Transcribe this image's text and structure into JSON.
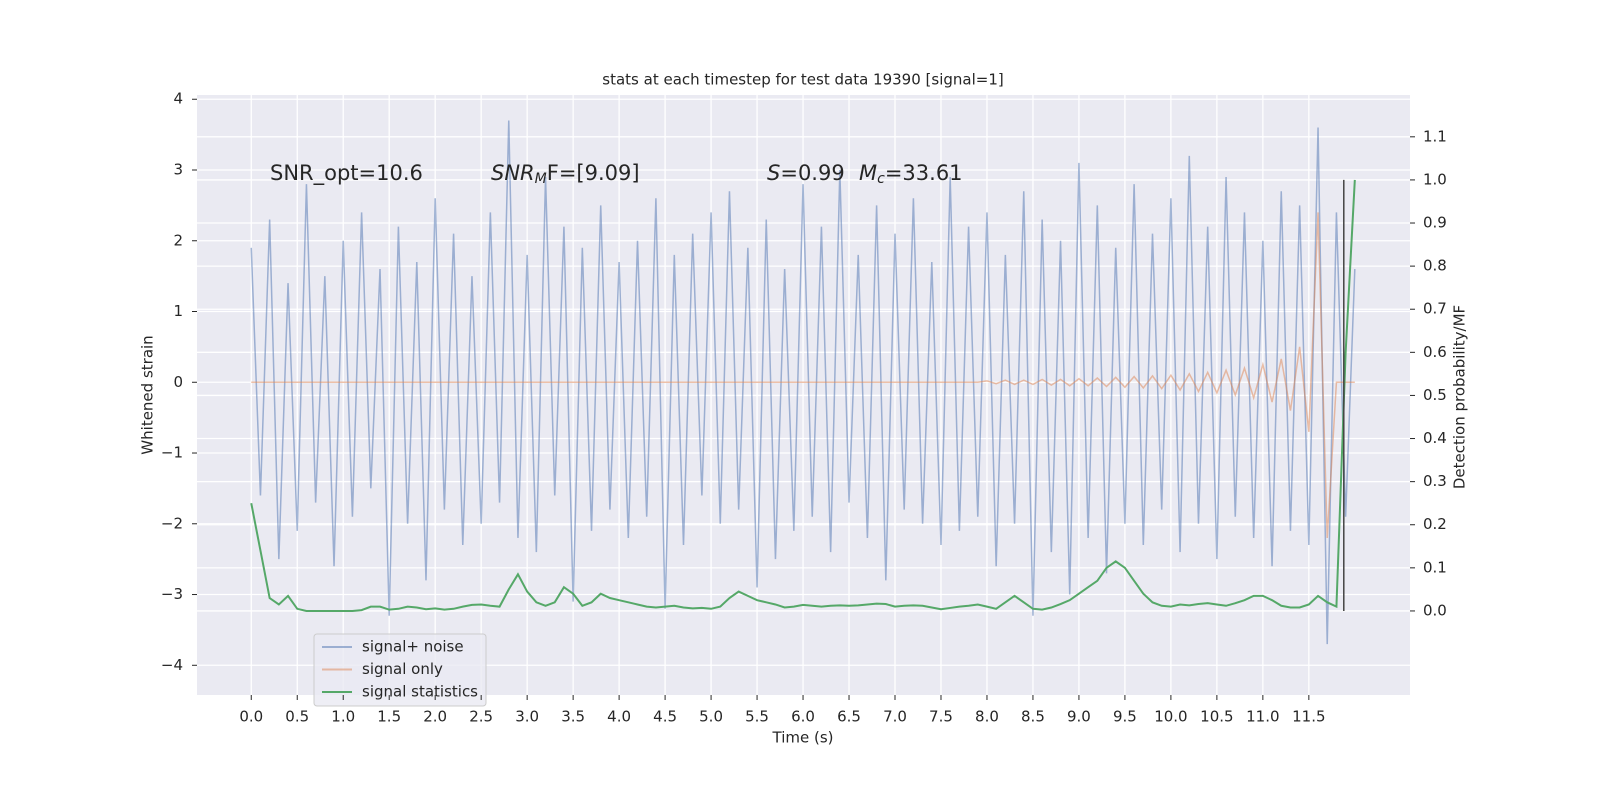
{
  "chart_data": {
    "type": "line",
    "title": "stats at each timestep for test data 19390 [signal=1]",
    "xlabel": "Time (s)",
    "ylabel": "Whitened strain",
    "y2label": "Detection probability/MF",
    "annotations": [
      [
        "SNR_opt=10.6"
      ],
      [
        "SNR",
        "M",
        "F=[9.09]"
      ],
      [
        "S",
        "=0.99"
      ],
      [
        "M",
        "c",
        "=33.61"
      ]
    ],
    "xlim": [
      -0.59,
      12.6
    ],
    "ylim": [
      -4.42,
      4.06
    ],
    "y2lim": [
      -0.195,
      1.197
    ],
    "xticks": [
      {
        "value": 0,
        "label": "0.0"
      },
      0.5,
      {
        "value": 1,
        "label": "1.0"
      },
      1.5,
      {
        "value": 2,
        "label": "2.0"
      },
      2.5,
      {
        "value": 3,
        "label": "3.0"
      },
      3.5,
      {
        "value": 4,
        "label": "4.0"
      },
      4.5,
      {
        "value": 5,
        "label": "5.0"
      },
      5.5,
      {
        "value": 6,
        "label": "6.0"
      },
      6.5,
      {
        "value": 7,
        "label": "7.0"
      },
      7.5,
      {
        "value": 8,
        "label": "8.0"
      },
      8.5,
      {
        "value": 9,
        "label": "9.0"
      },
      9.5,
      {
        "value": 10,
        "label": "10.0"
      },
      10.5,
      {
        "value": 11,
        "label": "11.0"
      },
      11.5
    ],
    "yticks": [
      {
        "value": -4,
        "label": "−4"
      },
      {
        "value": -3,
        "label": "−3"
      },
      {
        "value": -2,
        "label": "−2"
      },
      {
        "value": -1,
        "label": "−1"
      },
      0,
      1,
      2,
      3,
      4
    ],
    "y2ticks": [
      {
        "value": 0,
        "label": "0.0"
      },
      0.1,
      0.2,
      0.3,
      0.4,
      0.5,
      0.6,
      0.7,
      0.8,
      0.9,
      {
        "value": 1,
        "label": "1.0"
      },
      1.1
    ],
    "grid": true,
    "legend": "lower left",
    "vline": {
      "x": 11.88,
      "ymin": 0,
      "ymax": 1.0,
      "color": "#444444"
    },
    "x": [
      0.0,
      0.1,
      0.2,
      0.3,
      0.4,
      0.5,
      0.6,
      0.7,
      0.8,
      0.9,
      1.0,
      1.1,
      1.2,
      1.3,
      1.4,
      1.5,
      1.6,
      1.7,
      1.8,
      1.9,
      2.0,
      2.1,
      2.2,
      2.3,
      2.4,
      2.5,
      2.6,
      2.7,
      2.8,
      2.9,
      3.0,
      3.1,
      3.2,
      3.3,
      3.4,
      3.5,
      3.6,
      3.7,
      3.8,
      3.9,
      4.0,
      4.1,
      4.2,
      4.3,
      4.4,
      4.5,
      4.6,
      4.7,
      4.8,
      4.9,
      5.0,
      5.1,
      5.2,
      5.3,
      5.4,
      5.5,
      5.6,
      5.7,
      5.8,
      5.9,
      6.0,
      6.1,
      6.2,
      6.3,
      6.4,
      6.5,
      6.6,
      6.7,
      6.8,
      6.9,
      7.0,
      7.1,
      7.2,
      7.3,
      7.4,
      7.5,
      7.6,
      7.7,
      7.8,
      7.9,
      8.0,
      8.1,
      8.2,
      8.3,
      8.4,
      8.5,
      8.6,
      8.7,
      8.8,
      8.9,
      9.0,
      9.1,
      9.2,
      9.3,
      9.4,
      9.5,
      9.6,
      9.7,
      9.8,
      9.9,
      10.0,
      10.1,
      10.2,
      10.3,
      10.4,
      10.5,
      10.6,
      10.7,
      10.8,
      10.9,
      11.0,
      11.1,
      11.2,
      11.3,
      11.4,
      11.5,
      11.6,
      11.7,
      11.8,
      11.9,
      12.0
    ],
    "series": [
      {
        "name": "signal+ noise",
        "color": "#4c72b0",
        "alpha": 0.5,
        "values": [
          1.9,
          -1.6,
          2.3,
          -2.5,
          1.4,
          -2.1,
          2.8,
          -1.7,
          1.5,
          -2.6,
          2.0,
          -1.9,
          2.4,
          -1.5,
          1.6,
          -3.3,
          2.2,
          -2.0,
          1.7,
          -2.8,
          2.6,
          -1.8,
          2.1,
          -2.3,
          1.5,
          -2.0,
          2.4,
          -1.7,
          3.7,
          -2.2,
          1.8,
          -2.4,
          2.9,
          -1.6,
          2.2,
          -3.1,
          1.9,
          -2.1,
          2.5,
          -1.8,
          1.7,
          -2.2,
          2.0,
          -1.9,
          2.6,
          -3.2,
          1.8,
          -2.3,
          2.1,
          -1.6,
          2.4,
          -2.0,
          2.7,
          -1.8,
          1.9,
          -2.9,
          2.3,
          -2.5,
          1.6,
          -2.1,
          2.8,
          -1.9,
          2.2,
          -2.4,
          3.0,
          -1.7,
          1.8,
          -2.2,
          2.5,
          -2.8,
          2.1,
          -1.8,
          2.6,
          -2.0,
          1.7,
          -2.3,
          2.9,
          -2.1,
          2.2,
          -1.9,
          2.4,
          -2.6,
          1.8,
          -2.0,
          2.7,
          -3.3,
          2.3,
          -2.4,
          2.0,
          -3.0,
          3.1,
          -2.2,
          2.5,
          -2.7,
          1.9,
          -2.0,
          2.8,
          -2.3,
          2.1,
          -1.8,
          2.6,
          -2.4,
          3.2,
          -2.0,
          2.2,
          -2.5,
          2.9,
          -1.9,
          2.4,
          -2.2,
          2.0,
          -2.6,
          2.7,
          -2.1,
          2.5,
          -2.3,
          3.6,
          -3.7,
          2.4,
          -1.9,
          1.6
        ]
      },
      {
        "name": "signal only",
        "color": "#dd8452",
        "alpha": 0.5,
        "values": [
          0,
          0,
          0,
          0,
          0,
          0,
          0,
          0,
          0,
          0,
          0,
          0,
          0,
          0,
          0,
          0,
          0,
          0,
          0,
          0,
          0,
          0,
          0,
          0,
          0,
          0,
          0,
          0,
          0,
          0,
          0,
          0,
          0,
          0,
          0,
          0,
          0,
          0,
          0,
          0,
          0,
          0,
          0,
          0,
          0,
          0,
          0,
          0,
          0,
          0,
          0,
          0,
          0,
          0,
          0,
          0,
          0,
          0,
          0,
          0,
          0,
          0,
          0,
          0,
          0,
          0,
          0,
          0,
          0,
          0,
          0,
          0,
          0,
          0,
          0,
          0,
          0,
          0,
          0,
          0,
          0.02,
          -0.02,
          0.03,
          -0.03,
          0.03,
          -0.03,
          0.04,
          -0.04,
          0.04,
          -0.05,
          0.05,
          -0.05,
          0.06,
          -0.06,
          0.07,
          -0.07,
          0.08,
          -0.08,
          0.09,
          -0.09,
          0.1,
          -0.11,
          0.12,
          -0.13,
          0.14,
          -0.15,
          0.17,
          -0.18,
          0.2,
          -0.22,
          0.25,
          -0.28,
          0.33,
          -0.4,
          0.5,
          -0.7,
          2.4,
          -2.2,
          0,
          0,
          0
        ]
      },
      {
        "name": "signal statistics",
        "color": "#55a868",
        "alpha": 1,
        "axis": "y2",
        "values": [
          0.25,
          0.14,
          0.03,
          0.015,
          0.035,
          0.005,
          0,
          0,
          0,
          0,
          0,
          0,
          0.002,
          0.01,
          0.01,
          0.003,
          0.005,
          0.01,
          0.008,
          0.004,
          0.006,
          0.003,
          0.005,
          0.01,
          0.014,
          0.015,
          0.012,
          0.01,
          0.05,
          0.085,
          0.045,
          0.02,
          0.012,
          0.02,
          0.055,
          0.04,
          0.012,
          0.02,
          0.04,
          0.03,
          0.025,
          0.02,
          0.015,
          0.01,
          0.008,
          0.01,
          0.012,
          0.008,
          0.006,
          0.007,
          0.005,
          0.01,
          0.03,
          0.045,
          0.035,
          0.025,
          0.02,
          0.015,
          0.008,
          0.01,
          0.014,
          0.012,
          0.01,
          0.012,
          0.013,
          0.012,
          0.013,
          0.015,
          0.017,
          0.016,
          0.01,
          0.012,
          0.013,
          0.012,
          0.008,
          0.004,
          0.007,
          0.01,
          0.012,
          0.015,
          0.01,
          0.005,
          0.02,
          0.035,
          0.02,
          0.005,
          0.003,
          0.008,
          0.016,
          0.025,
          0.04,
          0.055,
          0.07,
          0.1,
          0.115,
          0.1,
          0.07,
          0.04,
          0.02,
          0.012,
          0.01,
          0.015,
          0.013,
          0.016,
          0.018,
          0.015,
          0.012,
          0.018,
          0.025,
          0.035,
          0.035,
          0.025,
          0.012,
          0.008,
          0.008,
          0.015,
          0.035,
          0.02,
          0.01,
          0.6,
          1.0
        ]
      }
    ]
  }
}
